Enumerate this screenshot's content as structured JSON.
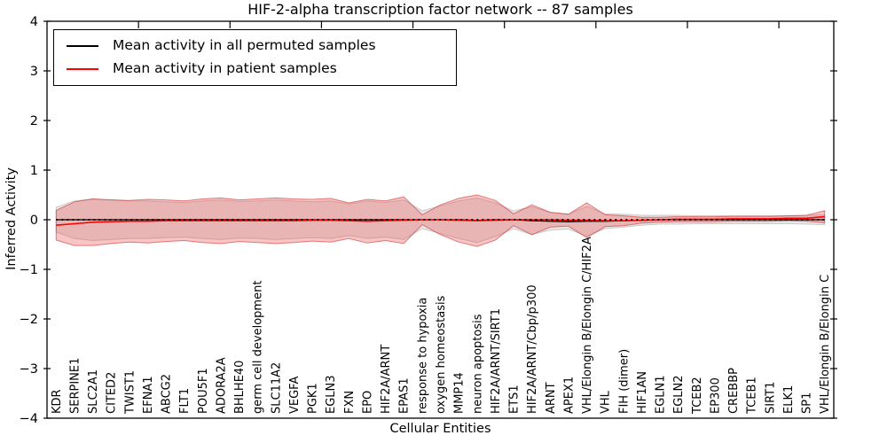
{
  "chart_data": {
    "type": "line",
    "title": "HIF-2-alpha transcription factor network -- 87 samples",
    "xlabel": "Cellular Entities",
    "ylabel": "Inferred Activity",
    "ylim": [
      -4,
      4
    ],
    "yticks": [
      -4,
      -3,
      -2,
      -1,
      0,
      1,
      2,
      3,
      4
    ],
    "x_major_tick_positions": [
      5,
      10,
      15,
      20,
      25,
      30,
      35,
      40
    ],
    "grid": false,
    "legend_position": "upper left",
    "zero_reference_line": {
      "y": 0,
      "style": "dotted",
      "color": "#000000"
    },
    "categories": [
      "KDR",
      "SERPINE1",
      "SLC2A1",
      "CITED2",
      "TWIST1",
      "EFNA1",
      "ABCG2",
      "FLT1",
      "POU5F1",
      "ADORA2A",
      "BHLHE40",
      "germ cell development",
      "SLC11A2",
      "VEGFA",
      "PGK1",
      "EGLN3",
      "FXN",
      "EPO",
      "HIF2A/ARNT",
      "EPAS1",
      "response to hypoxia",
      "oxygen homeostasis",
      "MMP14",
      "neuron apoptosis",
      "HIF2A/ARNT/SIRT1",
      "ETS1",
      "HIF2A/ARNT/Cbp/p300",
      "ARNT",
      "APEX1",
      "VHL/Elongin B/Elongin C/HIF2A",
      "VHL",
      "FIH (dimer)",
      "HIF1AN",
      "EGLN1",
      "EGLN2",
      "TCEB2",
      "EP300",
      "CREBBP",
      "TCEB1",
      "SIRT1",
      "ELK1",
      "SP1",
      "VHL/Elongin B/Elongin C"
    ],
    "series": [
      {
        "name": "Mean activity in all permuted samples",
        "color": "#000000",
        "band_fill": "rgba(130,130,130,0.18)",
        "band_edge": "rgba(80,80,80,0.25)",
        "mean": [
          0,
          0,
          0,
          0,
          0,
          0,
          0,
          0,
          0,
          0,
          0,
          0,
          0,
          0,
          0,
          0,
          0,
          0,
          0,
          0,
          0,
          0,
          0,
          -0.01,
          0,
          0,
          -0.02,
          -0.03,
          -0.04,
          -0.03,
          -0.03,
          -0.02,
          -0.01,
          0,
          0,
          0,
          0,
          0,
          0,
          0,
          0,
          0,
          0
        ],
        "std": [
          0.25,
          0.38,
          0.42,
          0.4,
          0.38,
          0.38,
          0.36,
          0.35,
          0.38,
          0.4,
          0.37,
          0.38,
          0.4,
          0.38,
          0.36,
          0.38,
          0.32,
          0.38,
          0.35,
          0.4,
          0.18,
          0.28,
          0.38,
          0.45,
          0.34,
          0.18,
          0.28,
          0.18,
          0.15,
          0.3,
          0.15,
          0.13,
          0.1,
          0.09,
          0.09,
          0.08,
          0.08,
          0.08,
          0.08,
          0.08,
          0.08,
          0.09,
          0.1
        ]
      },
      {
        "name": "Mean activity in patient samples",
        "color": "#ff0000",
        "band_fill": "rgba(232,58,58,0.30)",
        "band_edge": "rgba(205,35,35,0.55)",
        "mean": [
          -0.11,
          -0.08,
          -0.05,
          -0.04,
          -0.03,
          -0.03,
          -0.02,
          -0.02,
          -0.02,
          -0.02,
          -0.02,
          -0.02,
          -0.02,
          -0.02,
          -0.01,
          -0.01,
          -0.02,
          -0.03,
          -0.02,
          -0.01,
          0,
          0,
          -0.01,
          -0.02,
          -0.01,
          0,
          0,
          0,
          -0.01,
          -0.01,
          -0.02,
          -0.02,
          -0.01,
          0,
          0.01,
          0.01,
          0.01,
          0.02,
          0.02,
          0.02,
          0.03,
          0.03,
          0.06
        ],
        "std": [
          0.3,
          0.44,
          0.47,
          0.44,
          0.42,
          0.44,
          0.42,
          0.4,
          0.44,
          0.46,
          0.42,
          0.44,
          0.46,
          0.44,
          0.42,
          0.44,
          0.36,
          0.44,
          0.4,
          0.47,
          0.1,
          0.3,
          0.44,
          0.52,
          0.4,
          0.12,
          0.3,
          0.15,
          0.12,
          0.35,
          0.12,
          0.1,
          0.06,
          0.05,
          0.05,
          0.05,
          0.05,
          0.05,
          0.05,
          0.05,
          0.05,
          0.06,
          0.12
        ]
      }
    ]
  }
}
